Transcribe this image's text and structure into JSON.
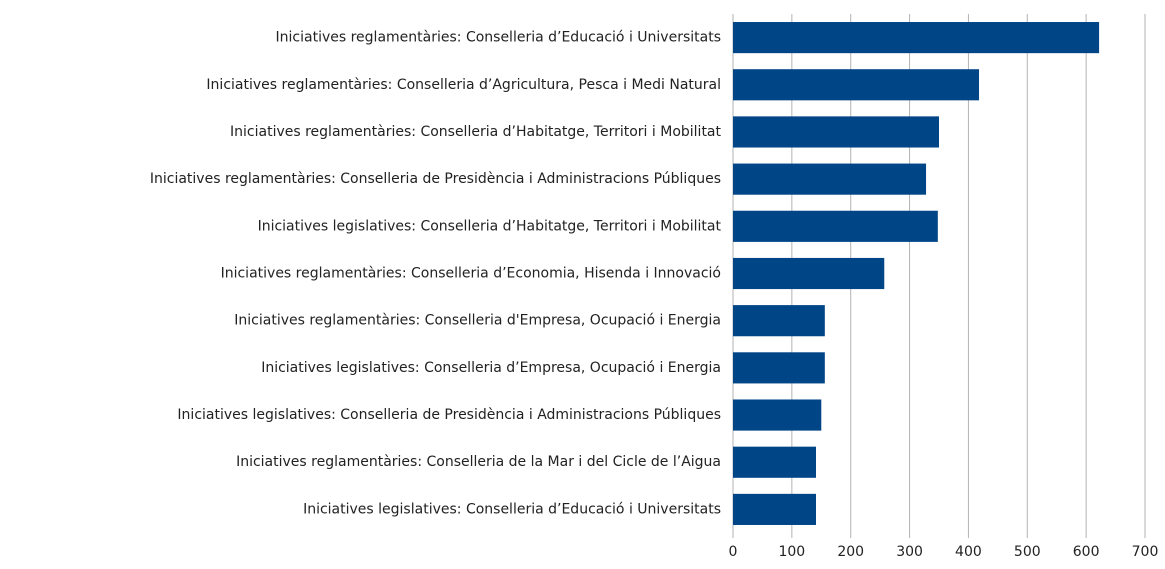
{
  "chart_data": {
    "type": "bar",
    "orientation": "horizontal",
    "categories": [
      "Iniciatives reglamentàries: Conselleria d’Educació i Universitats",
      "Iniciatives reglamentàries: Conselleria d’Agricultura, Pesca i Medi Natural",
      "Iniciatives reglamentàries: Conselleria d’Habitatge, Territori i Mobilitat",
      "Iniciatives reglamentàries: Conselleria de Presidència i Administracions Públiques",
      "Iniciatives legislatives: Conselleria d’Habitatge, Territori i Mobilitat",
      "Iniciatives reglamentàries: Conselleria d’Economia, Hisenda i Innovació",
      "Iniciatives reglamentàries: Conselleria d'Empresa, Ocupació i Energia",
      "Iniciatives legislatives: Conselleria d’Empresa, Ocupació i Energia",
      "Iniciatives legislatives: Conselleria de Presidència i Administracions Públiques",
      "Iniciatives reglamentàries: Conselleria de la Mar i del Cicle de l’Aigua",
      "Iniciatives legislatives: Conselleria d’Educació i Universitats"
    ],
    "values": [
      622,
      418,
      350,
      328,
      348,
      257,
      156,
      156,
      150,
      141,
      141
    ],
    "color": "#004586",
    "xlim": [
      0,
      700
    ],
    "xticks": [
      0,
      100,
      200,
      300,
      400,
      500,
      600,
      700
    ],
    "grid": true
  }
}
